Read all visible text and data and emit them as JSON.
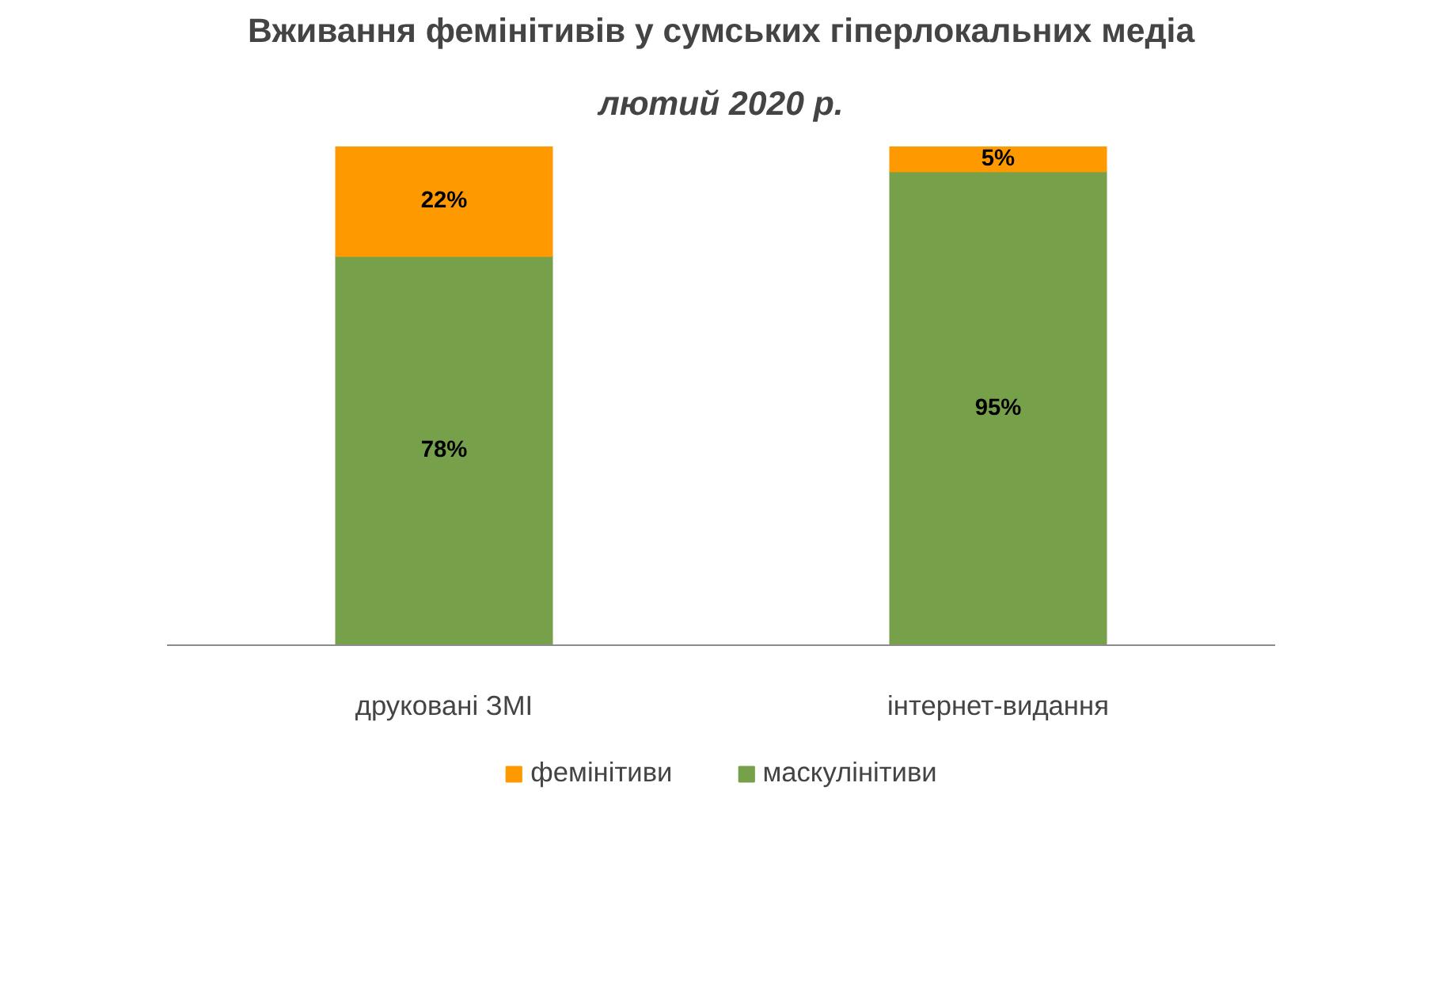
{
  "chart_data": {
    "type": "bar",
    "stacked": true,
    "title": "Вживання фемінітивів у сумських гіперлокальних медіа",
    "subtitle": "лютий 2020 р.",
    "categories": [
      "друковані ЗМІ",
      "інтернет-видання"
    ],
    "series": [
      {
        "name": "маскулінітиви",
        "color": "#77a04a",
        "values": [
          78,
          95
        ],
        "value_labels": [
          "78%",
          "95%"
        ]
      },
      {
        "name": "фемінітиви",
        "color": "#ff9900",
        "values": [
          22,
          5
        ],
        "value_labels": [
          "22%",
          "5%"
        ]
      }
    ],
    "legend": "bottom"
  }
}
